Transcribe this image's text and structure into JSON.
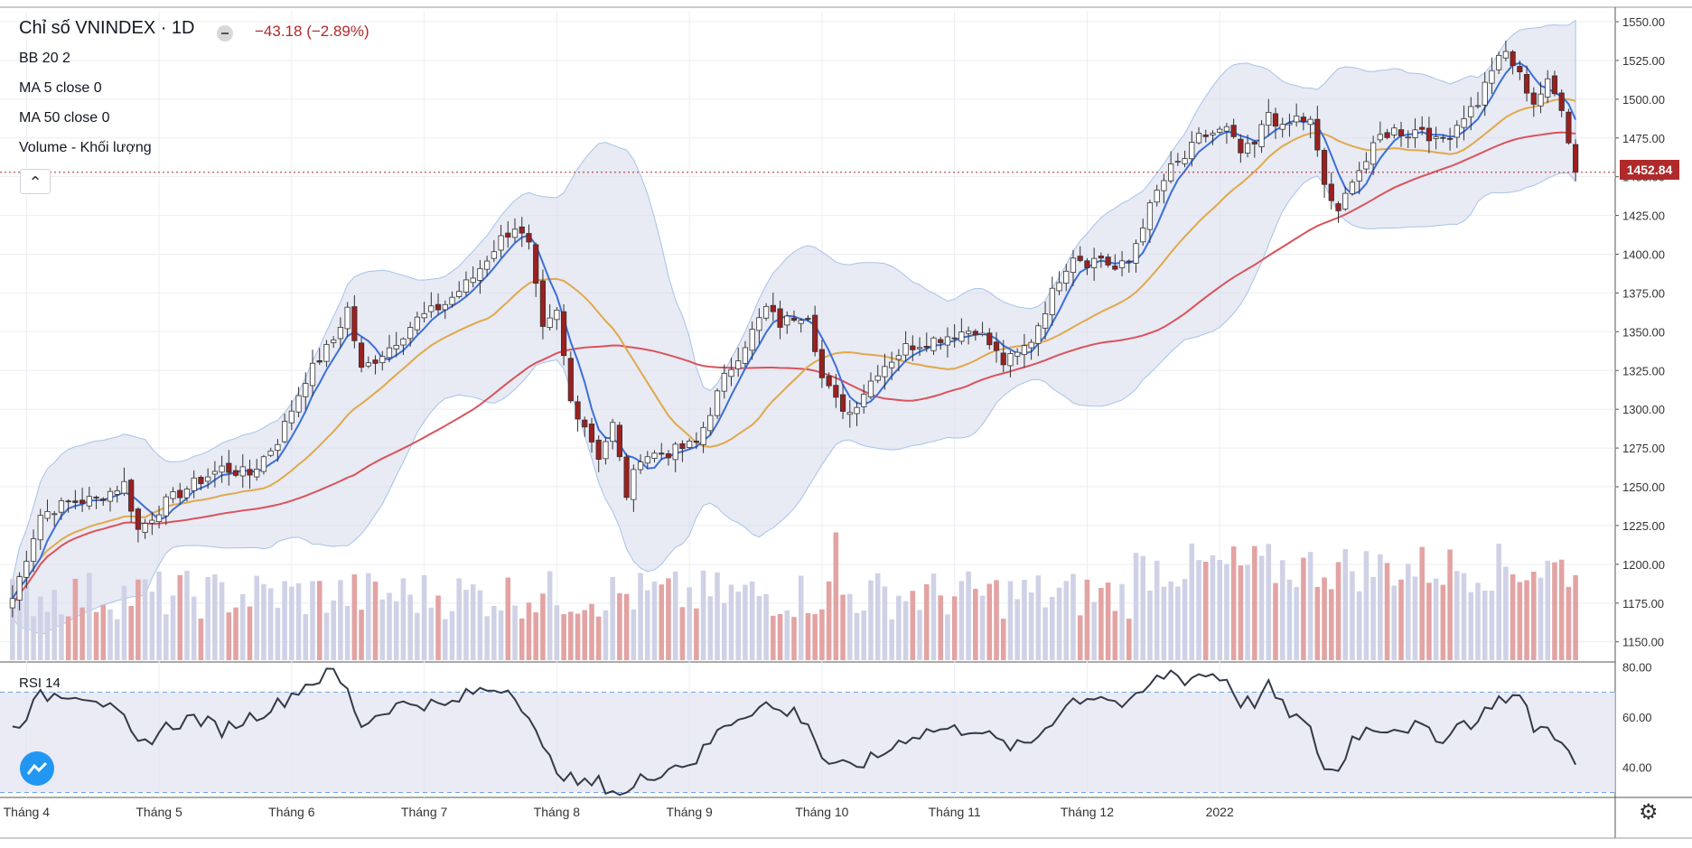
{
  "legend": {
    "title": "Chỉ số VNINDEX · 1D",
    "change": "−43.18 (−2.89%)",
    "bb": "BB 20 2",
    "ma5": "MA 5 close 0",
    "ma50": "MA 50 close 0",
    "volume": "Volume - Khối lượng"
  },
  "rsi_label": "RSI 14",
  "last_price_label": "1452.84",
  "footer_text": "",
  "colors": {
    "up": "#ffffff",
    "down": "#9b2020",
    "ma5": "#3b6fd8",
    "ma50": "#e0a94a",
    "ma_long": "#d9535a",
    "band_fill": "#d9dced",
    "band_line": "#a7c3e8",
    "vol_up": "#cfd2e6",
    "vol_down": "#e3a3a3",
    "rsi_line": "#333a48",
    "rsi_fill": "#e1e2f0"
  },
  "chart_data": [
    {
      "type": "candlestick",
      "title": "Chỉ số VNINDEX",
      "timeframe": "1D",
      "last_close": 1452.84,
      "change": -43.18,
      "change_pct": -2.89,
      "x_tick_labels": [
        "Tháng 4",
        "Tháng 5",
        "Tháng 6",
        "Tháng 7",
        "Tháng 8",
        "Tháng 9",
        "Tháng 10",
        "Tháng 11",
        "Tháng 12",
        "2022"
      ],
      "y_ticks": [
        1150,
        1175,
        1200,
        1225,
        1250,
        1275,
        1300,
        1325,
        1350,
        1375,
        1400,
        1425,
        1450,
        1475,
        1500,
        1525,
        1550
      ],
      "y_tick_labels": [
        "1150.00",
        "1175.00",
        "1200.00",
        "1225.00",
        "1250.00",
        "1275.00",
        "1300.00",
        "1325.00",
        "1350.00",
        "1375.00",
        "1400.00",
        "1425.00",
        "1450.00",
        "1475.00",
        "1500.00",
        "1525.00",
        "1550.00"
      ],
      "ylim": [
        1137,
        1557
      ],
      "close_anchors": [
        [
          0,
          1178
        ],
        [
          4,
          1232
        ],
        [
          8,
          1240
        ],
        [
          12,
          1242
        ],
        [
          16,
          1252
        ],
        [
          18,
          1222
        ],
        [
          22,
          1240
        ],
        [
          26,
          1252
        ],
        [
          30,
          1262
        ],
        [
          34,
          1258
        ],
        [
          38,
          1280
        ],
        [
          42,
          1320
        ],
        [
          46,
          1345
        ],
        [
          48,
          1365
        ],
        [
          50,
          1325
        ],
        [
          54,
          1340
        ],
        [
          58,
          1358
        ],
        [
          62,
          1368
        ],
        [
          66,
          1385
        ],
        [
          70,
          1410
        ],
        [
          72,
          1418
        ],
        [
          74,
          1405
        ],
        [
          76,
          1350
        ],
        [
          78,
          1362
        ],
        [
          80,
          1305
        ],
        [
          82,
          1290
        ],
        [
          84,
          1270
        ],
        [
          86,
          1290
        ],
        [
          88,
          1245
        ],
        [
          90,
          1270
        ],
        [
          94,
          1272
        ],
        [
          98,
          1278
        ],
        [
          102,
          1320
        ],
        [
          106,
          1350
        ],
        [
          108,
          1365
        ],
        [
          110,
          1355
        ],
        [
          112,
          1360
        ],
        [
          114,
          1362
        ],
        [
          116,
          1320
        ],
        [
          118,
          1305
        ],
        [
          120,
          1298
        ],
        [
          124,
          1325
        ],
        [
          128,
          1340
        ],
        [
          132,
          1345
        ],
        [
          136,
          1350
        ],
        [
          138,
          1352
        ],
        [
          140,
          1342
        ],
        [
          142,
          1330
        ],
        [
          144,
          1335
        ],
        [
          146,
          1345
        ],
        [
          148,
          1365
        ],
        [
          150,
          1385
        ],
        [
          152,
          1400
        ],
        [
          154,
          1395
        ],
        [
          156,
          1398
        ],
        [
          158,
          1390
        ],
        [
          160,
          1395
        ],
        [
          162,
          1420
        ],
        [
          164,
          1440
        ],
        [
          166,
          1455
        ],
        [
          168,
          1462
        ],
        [
          170,
          1475
        ],
        [
          172,
          1478
        ],
        [
          174,
          1480
        ],
        [
          176,
          1465
        ],
        [
          178,
          1470
        ],
        [
          180,
          1492
        ],
        [
          182,
          1480
        ],
        [
          184,
          1488
        ],
        [
          186,
          1485
        ],
        [
          188,
          1445
        ],
        [
          190,
          1425
        ],
        [
          192,
          1450
        ],
        [
          194,
          1460
        ],
        [
          196,
          1476
        ],
        [
          198,
          1480
        ],
        [
          200,
          1478
        ],
        [
          202,
          1482
        ],
        [
          204,
          1472
        ],
        [
          206,
          1478
        ],
        [
          208,
          1490
        ],
        [
          210,
          1498
        ],
        [
          212,
          1520
        ],
        [
          214,
          1530
        ],
        [
          216,
          1515
        ],
        [
          218,
          1498
        ],
        [
          220,
          1510
        ],
        [
          222,
          1496
        ],
        [
          224,
          1453
        ]
      ],
      "n_sessions": 225,
      "bands": "Bollinger 20, 2",
      "moving_averages": [
        "MA 5",
        "MA 50"
      ]
    },
    {
      "type": "bar",
      "title": "Volume - Khối lượng",
      "note": "volume histogram shown at bottom of price pane, red = down day, lavender = up day"
    },
    {
      "type": "line",
      "title": "RSI 14",
      "y_ticks": [
        40,
        60,
        80
      ],
      "y_tick_labels": [
        "40.00",
        "60.00",
        "80.00"
      ],
      "ylim": [
        28,
        82
      ],
      "levels": [
        30,
        70
      ],
      "rsi_anchors": [
        [
          0,
          55
        ],
        [
          4,
          68
        ],
        [
          8,
          70
        ],
        [
          12,
          68
        ],
        [
          16,
          58
        ],
        [
          18,
          48
        ],
        [
          22,
          56
        ],
        [
          26,
          60
        ],
        [
          30,
          55
        ],
        [
          34,
          60
        ],
        [
          38,
          65
        ],
        [
          42,
          73
        ],
        [
          46,
          78
        ],
        [
          48,
          70
        ],
        [
          50,
          57
        ],
        [
          54,
          64
        ],
        [
          58,
          66
        ],
        [
          62,
          64
        ],
        [
          66,
          70
        ],
        [
          70,
          72
        ],
        [
          72,
          70
        ],
        [
          74,
          60
        ],
        [
          76,
          46
        ],
        [
          78,
          40
        ],
        [
          80,
          35
        ],
        [
          82,
          33
        ],
        [
          84,
          34
        ],
        [
          86,
          31
        ],
        [
          88,
          29
        ],
        [
          90,
          35
        ],
        [
          94,
          40
        ],
        [
          98,
          43
        ],
        [
          102,
          57
        ],
        [
          106,
          63
        ],
        [
          108,
          65
        ],
        [
          110,
          62
        ],
        [
          112,
          62
        ],
        [
          114,
          58
        ],
        [
          116,
          44
        ],
        [
          118,
          40
        ],
        [
          120,
          40
        ],
        [
          124,
          44
        ],
        [
          128,
          52
        ],
        [
          132,
          55
        ],
        [
          136,
          55
        ],
        [
          138,
          56
        ],
        [
          140,
          52
        ],
        [
          142,
          49
        ],
        [
          144,
          48
        ],
        [
          146,
          50
        ],
        [
          148,
          56
        ],
        [
          150,
          62
        ],
        [
          152,
          67
        ],
        [
          154,
          68
        ],
        [
          156,
          69
        ],
        [
          158,
          66
        ],
        [
          160,
          64
        ],
        [
          162,
          70
        ],
        [
          164,
          75
        ],
        [
          166,
          78
        ],
        [
          168,
          75
        ],
        [
          170,
          77
        ],
        [
          172,
          77
        ],
        [
          174,
          75
        ],
        [
          176,
          66
        ],
        [
          178,
          66
        ],
        [
          180,
          72
        ],
        [
          182,
          64
        ],
        [
          184,
          60
        ],
        [
          186,
          54
        ],
        [
          188,
          40
        ],
        [
          190,
          38
        ],
        [
          192,
          52
        ],
        [
          194,
          55
        ],
        [
          196,
          56
        ],
        [
          198,
          56
        ],
        [
          200,
          56
        ],
        [
          202,
          56
        ],
        [
          204,
          50
        ],
        [
          206,
          55
        ],
        [
          208,
          58
        ],
        [
          210,
          58
        ],
        [
          212,
          66
        ],
        [
          214,
          68
        ],
        [
          216,
          68
        ],
        [
          218,
          56
        ],
        [
          220,
          55
        ],
        [
          222,
          52
        ],
        [
          224,
          39
        ]
      ]
    }
  ]
}
